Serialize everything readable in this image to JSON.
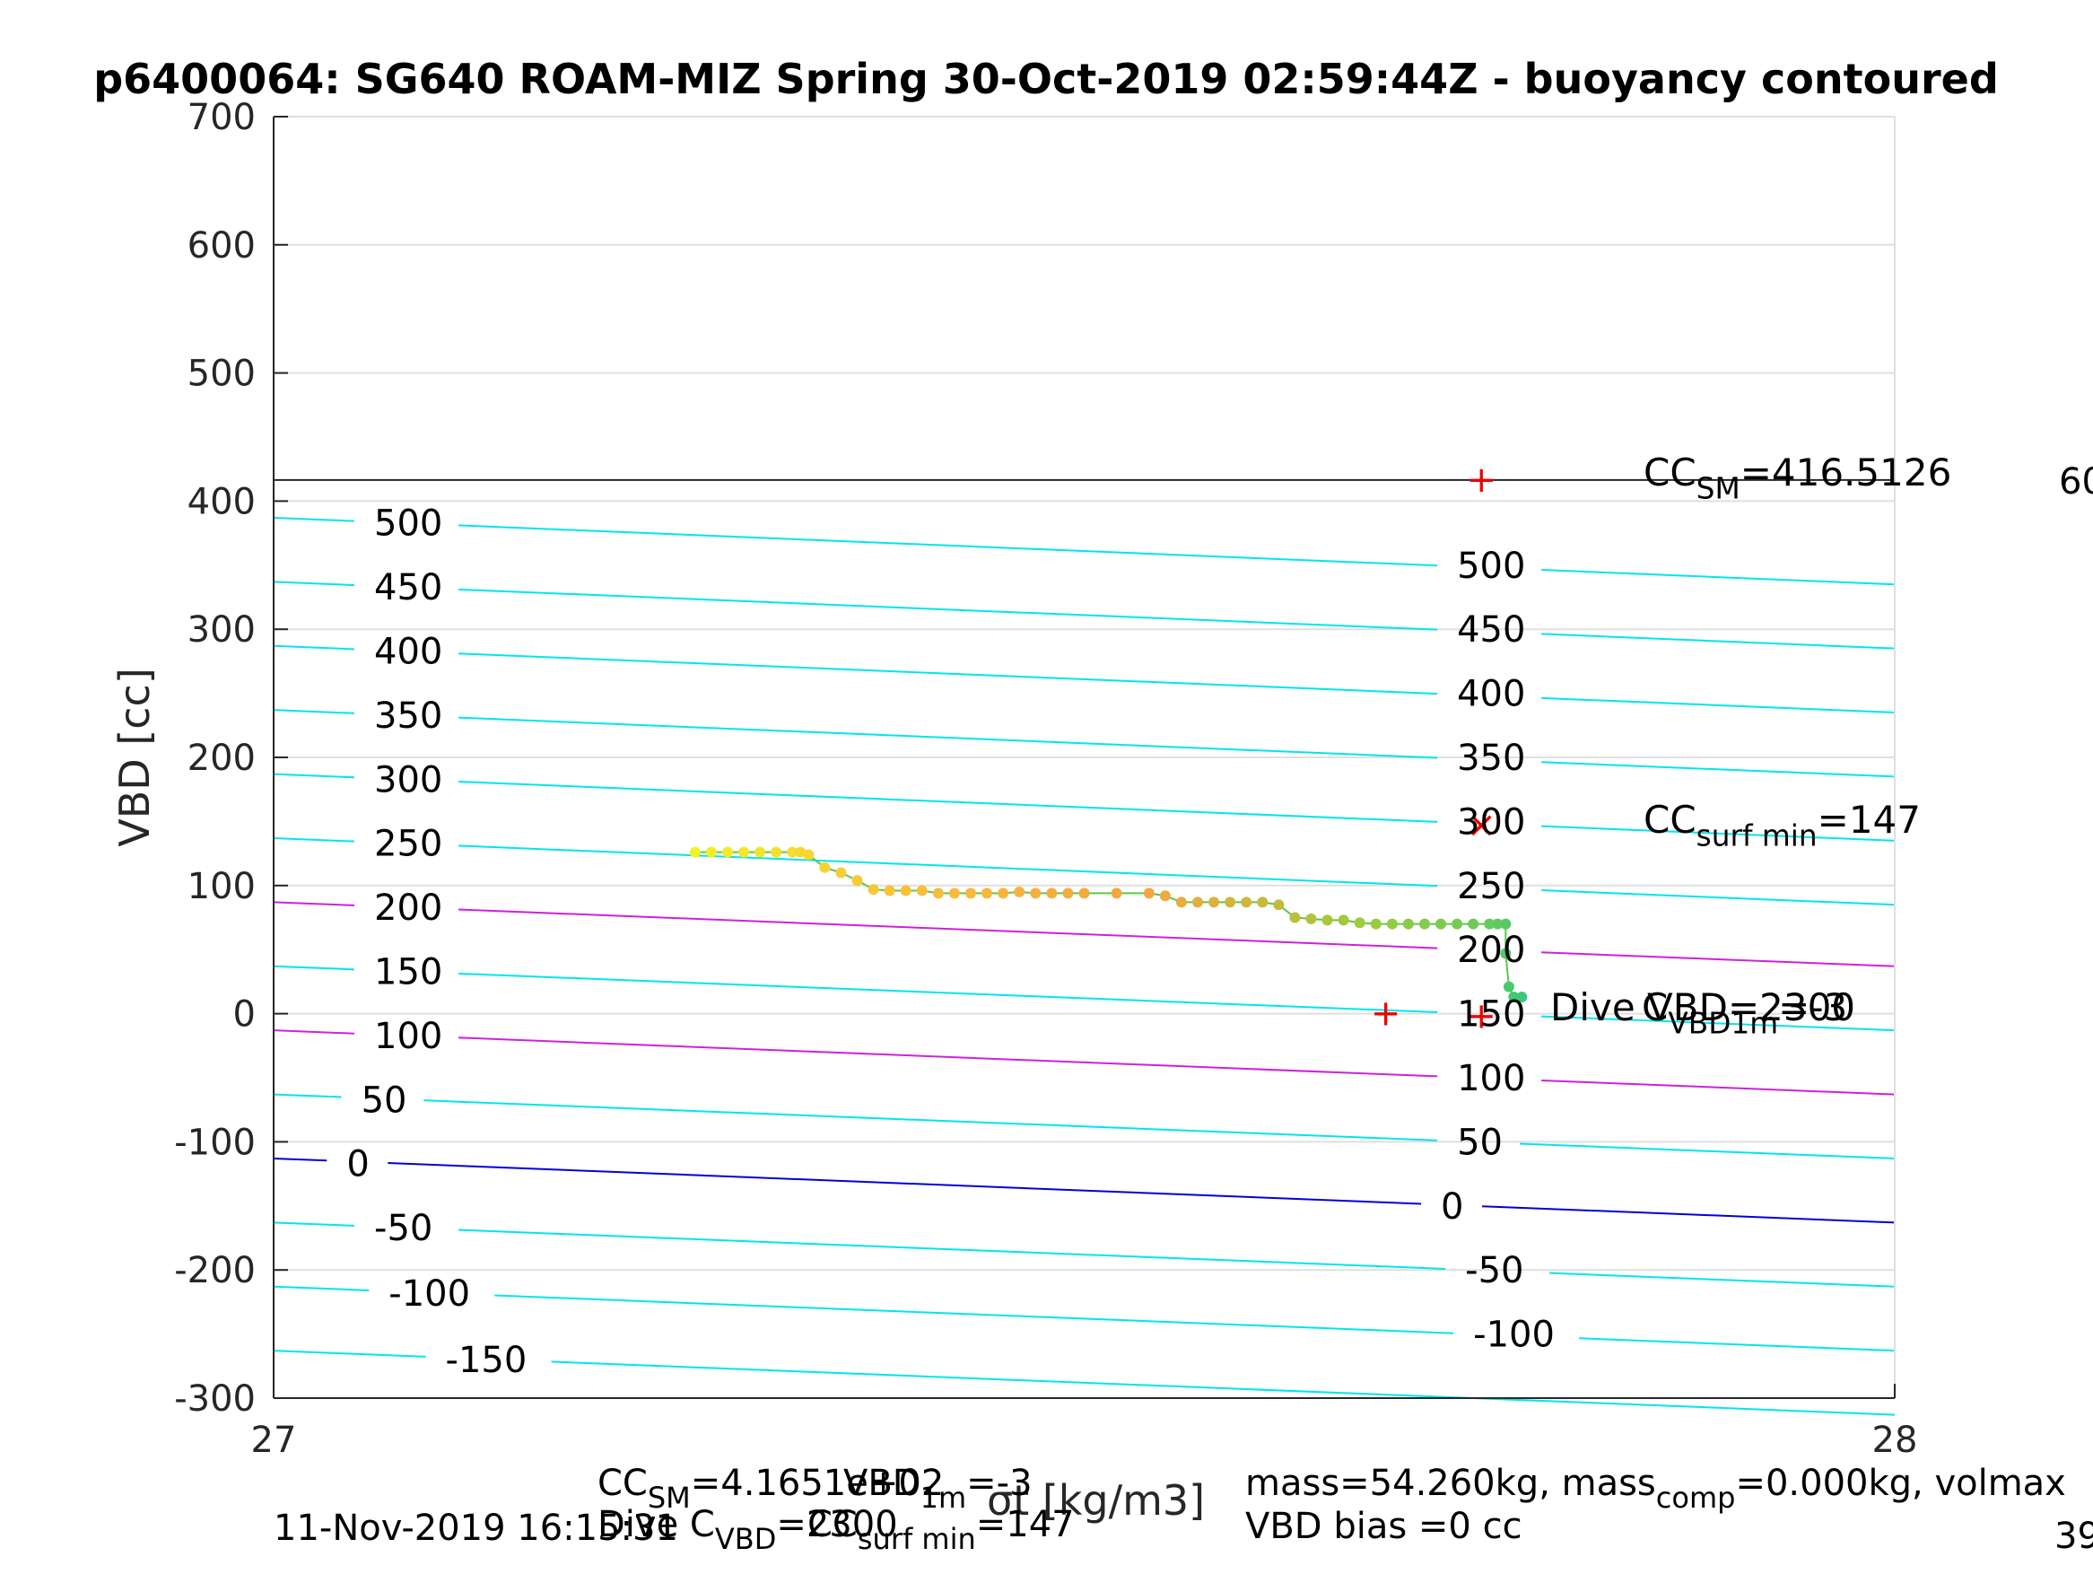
{
  "chart_data": {
    "type": "scatter",
    "title": "p6400064: SG640 ROAM-MIZ Spring 30-Oct-2019 02:59:44Z - buoyancy contoured",
    "xlabel": "σt [kg/m3]",
    "ylabel": "VBD [cc]",
    "xlim": [
      27,
      28
    ],
    "ylim": [
      -300,
      700
    ],
    "xticks": [
      "27",
      "28"
    ],
    "yticks": [
      "700",
      "600",
      "500",
      "400",
      "300",
      "200",
      "100",
      "0",
      "-100",
      "-200",
      "-300"
    ],
    "grid": true,
    "contours": [
      {
        "level": "500",
        "y_at_x27": 387,
        "y_at_x28": 335,
        "color": "#00e5ee"
      },
      {
        "level": "450",
        "y_at_x27": 337,
        "y_at_x28": 285,
        "color": "#00e5ee"
      },
      {
        "level": "400",
        "y_at_x27": 287,
        "y_at_x28": 235,
        "color": "#00e5ee"
      },
      {
        "level": "350",
        "y_at_x27": 237,
        "y_at_x28": 185,
        "color": "#00e5ee"
      },
      {
        "level": "300",
        "y_at_x27": 187,
        "y_at_x28": 135,
        "color": "#00e5ee"
      },
      {
        "level": "250",
        "y_at_x27": 137,
        "y_at_x28": 85,
        "color": "#00e5ee"
      },
      {
        "level": "200",
        "y_at_x27": 87,
        "y_at_x28": 37,
        "color": "#cc22dd"
      },
      {
        "level": "150",
        "y_at_x27": 37,
        "y_at_x28": -13,
        "color": "#00e5ee"
      },
      {
        "level": "100",
        "y_at_x27": -13,
        "y_at_x28": -63,
        "color": "#cc22dd"
      },
      {
        "level": "50",
        "y_at_x27": -63,
        "y_at_x28": -113,
        "color": "#00e5ee"
      },
      {
        "level": "0",
        "y_at_x27": -113,
        "y_at_x28": -163,
        "color": "#0000dd"
      },
      {
        "level": "-50",
        "y_at_x27": -163,
        "y_at_x28": -213,
        "color": "#00e5ee"
      },
      {
        "level": "-100",
        "y_at_x27": -213,
        "y_at_x28": -263,
        "color": "#00e5ee"
      },
      {
        "level": "-150",
        "y_at_x27": -263,
        "y_at_x28": -313,
        "color": "#00e5ee"
      }
    ],
    "contour_labels_left": [
      {
        "text": "500",
        "x": 27.062,
        "y": 383
      },
      {
        "text": "450",
        "x": 27.062,
        "y": 333
      },
      {
        "text": "400",
        "x": 27.062,
        "y": 283
      },
      {
        "text": "350",
        "x": 27.062,
        "y": 233
      },
      {
        "text": "300",
        "x": 27.062,
        "y": 183
      },
      {
        "text": "250",
        "x": 27.062,
        "y": 133
      },
      {
        "text": "200",
        "x": 27.062,
        "y": 83
      },
      {
        "text": "150",
        "x": 27.062,
        "y": 33
      },
      {
        "text": "100",
        "x": 27.062,
        "y": -17
      },
      {
        "text": "50",
        "x": 27.054,
        "y": -67
      },
      {
        "text": "0",
        "x": 27.045,
        "y": -117
      },
      {
        "text": "-50",
        "x": 27.062,
        "y": -167
      },
      {
        "text": "-100",
        "x": 27.071,
        "y": -218
      },
      {
        "text": "-150",
        "x": 27.106,
        "y": -270
      }
    ],
    "contour_labels_right": [
      {
        "text": "500",
        "x": 27.73,
        "y": 350
      },
      {
        "text": "450",
        "x": 27.73,
        "y": 300
      },
      {
        "text": "400",
        "x": 27.73,
        "y": 250
      },
      {
        "text": "350",
        "x": 27.73,
        "y": 200
      },
      {
        "text": "300",
        "x": 27.73,
        "y": 150
      },
      {
        "text": "250",
        "x": 27.73,
        "y": 100
      },
      {
        "text": "200",
        "x": 27.73,
        "y": 50
      },
      {
        "text": "150",
        "x": 27.73,
        "y": 0
      },
      {
        "text": "100",
        "x": 27.73,
        "y": -50
      },
      {
        "text": "50",
        "x": 27.73,
        "y": -100
      },
      {
        "text": "0",
        "x": 27.72,
        "y": -150
      },
      {
        "text": "-50",
        "x": 27.735,
        "y": -200
      },
      {
        "text": "-100",
        "x": 27.74,
        "y": -250
      }
    ],
    "series": [
      {
        "x": [
          27.26,
          27.27,
          27.28,
          27.29,
          27.3,
          27.31,
          27.32,
          27.325,
          27.33,
          27.34,
          27.35,
          27.36,
          27.37,
          27.38,
          27.39,
          27.4,
          27.41,
          27.42,
          27.43,
          27.44,
          27.45,
          27.46,
          27.47,
          27.48,
          27.49,
          27.5,
          27.52,
          27.54,
          27.55,
          27.56,
          27.57,
          27.58,
          27.59,
          27.6,
          27.61,
          27.62,
          27.63,
          27.64,
          27.65,
          27.66,
          27.67,
          27.68,
          27.69,
          27.7,
          27.71,
          27.72,
          27.73,
          27.74,
          27.75,
          27.755,
          27.76,
          27.76,
          27.762,
          27.765,
          27.77
        ],
        "y": [
          126,
          126,
          126,
          126,
          126,
          126,
          126,
          126,
          124,
          114,
          110,
          104,
          97,
          96,
          96,
          96,
          94,
          94,
          94,
          94,
          94,
          95,
          94,
          94,
          94,
          94,
          94,
          94,
          92,
          87,
          87,
          87,
          87,
          87,
          87,
          85,
          75,
          74,
          73,
          73,
          71,
          70,
          70,
          70,
          70,
          70,
          70,
          70,
          70,
          70,
          70,
          47,
          21,
          13,
          13
        ],
        "color_scale": [
          "#f2f222",
          "#f8c23a",
          "#f5a640",
          "#9ccc3c",
          "#3cc878"
        ]
      }
    ],
    "hlines": [
      {
        "y": 416.5126,
        "color": "#262626"
      }
    ],
    "markers": [
      {
        "symbol": "+",
        "x": 27.745,
        "y": 416.5126,
        "color": "#ee0000"
      },
      {
        "symbol": "×",
        "x": 27.745,
        "y": 147,
        "color": "#ee0000"
      },
      {
        "symbol": "+",
        "x": 27.686,
        "y": 0,
        "color": "#ee0000"
      },
      {
        "symbol": "+",
        "x": 27.745,
        "y": -2,
        "color": "#ee0000"
      }
    ],
    "annotations": {
      "cc_sm": {
        "main": "CC",
        "sub": "SM",
        "rest": "=416.5126"
      },
      "cc_surf": {
        "main": "CC",
        "sub": "surf min",
        "rest": "=147"
      },
      "dive_vbd": {
        "text": "Dive VBD=2300"
      },
      "c_vbd1m": {
        "main": "C",
        "sub": "VBD1m",
        "rest": "=-3"
      },
      "right_edge_top": "60",
      "right_edge_bottom": "39"
    }
  },
  "footer": {
    "timestamp": "11-Nov-2019 16:15:31",
    "line1_left": "CC",
    "line1_left_sub": "SM",
    "line1_left_rest": "=4.1651e+02",
    "line1_mid": "VBD",
    "line1_mid_sub": "1m",
    "line1_mid_rest": "=-3",
    "line2_left": "Dive C",
    "line2_left_sub": "VBD",
    "line2_left_rest": "=2300",
    "line2_mid": "CC",
    "line2_mid_sub": "surf min",
    "line2_mid_rest": "=147",
    "info1_a": "mass=54.260kg, mass",
    "info1_sub": "comp",
    "info1_b": "=0.000kg, volmax",
    "info2": "VBD bias =0 cc"
  }
}
